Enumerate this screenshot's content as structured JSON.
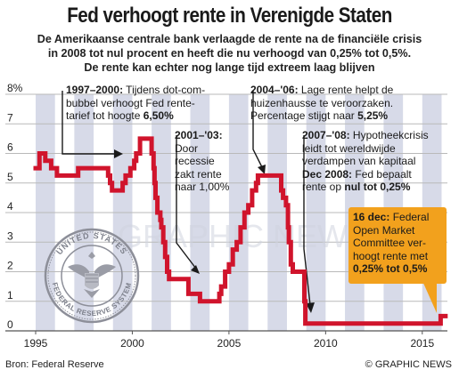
{
  "title": "Fed verhoogt rente in Verenigde Staten",
  "subtitle_lines": [
    "De Amerikaanse centrale bank verlaagde de rente na de financiële crisis",
    "in 2008 tot nul procent en heeft die nu verhoogd van 0,25% tot 0,5%.",
    "De rente kan echter nog lange tijd extreem laag blijven"
  ],
  "annotations": {
    "a1997": {
      "period": "1997–2000:",
      "text1": " Tijdens dot-com-",
      "line2": "bubbel verhoogt Fed rente-",
      "line3a": "tarief tot hoogte ",
      "line3b": "6,50%"
    },
    "a2001": {
      "period": "2001–'03:",
      "line2": "Door",
      "line3": "recessie",
      "line4": "zakt rente",
      "line5": "naar 1,00%"
    },
    "a2004": {
      "period": "2004–'06:",
      "text1": " Lage rente helpt de",
      "line2": "huizenhausse te veroorzaken.",
      "line3a": "Percentage stijgt naar ",
      "line3b": "5,25%"
    },
    "a2007": {
      "period": "2007–'08:",
      "text1": " Hypotheekcrisis",
      "line2": "leidt tot wereldwijde",
      "line3": "verdampen van kapitaal",
      "line4a": "Dec 2008:",
      "line4b": " Fed bepaalt",
      "line5a": "rente op ",
      "line5b": "nul tot 0,25%"
    },
    "a2015": {
      "date": "16 dec:",
      "text1": " Federal",
      "line2": "Open Market",
      "line3": "Committee ver-",
      "line4": "hoogt rente met",
      "line5": "0,25% tot 0,5%"
    }
  },
  "seal": {
    "top_text": "UNITED STATES",
    "bottom_text": "FEDERAL RESERVE SYSTEM"
  },
  "watermark": "GRAPHIC NEWS",
  "source": "Bron: Federal Reserve",
  "credit": "© GRAPHIC NEWS",
  "colors": {
    "line": "#d0142c",
    "band": "#c9cde0",
    "grid": "#b9b9b9",
    "callout": "#f2a11d"
  },
  "chart_data": {
    "type": "line",
    "title": "Fed verhoogt rente in Verenigde Staten",
    "xlabel": "",
    "ylabel": "",
    "xlim": [
      1995,
      2016.3
    ],
    "ylim": [
      0,
      8
    ],
    "x_ticks": [
      "1995",
      "2000",
      "2005",
      "2010",
      "2015"
    ],
    "y_ticks": [
      "0",
      "1",
      "2",
      "3",
      "4",
      "5",
      "6",
      "7",
      "8%"
    ],
    "grid": true,
    "series": [
      {
        "x": [
          1995.0,
          1995.2,
          1995.5,
          1995.8,
          1996.0,
          1996.1,
          1996.5,
          1997.0,
          1997.2,
          1997.5,
          1998.0,
          1998.5,
          1998.75,
          1998.85,
          1998.95,
          1999.0,
          1999.4,
          1999.5,
          1999.65,
          1999.9,
          2000.1,
          2000.2,
          2000.4,
          2000.5,
          2000.95,
          2001.0,
          2001.1,
          2001.15,
          2001.2,
          2001.3,
          2001.45,
          2001.5,
          2001.6,
          2001.7,
          2001.8,
          2001.9,
          2002.0,
          2002.8,
          2002.9,
          2003.4,
          2003.5,
          2004.0,
          2004.5,
          2004.6,
          2004.8,
          2005.0,
          2005.2,
          2005.4,
          2005.6,
          2005.8,
          2006.0,
          2006.2,
          2006.4,
          2006.5,
          2007.6,
          2007.7,
          2007.8,
          2007.95,
          2008.05,
          2008.1,
          2008.2,
          2008.3,
          2008.8,
          2008.9,
          2008.95,
          2015.9,
          2015.95,
          2016.2
        ],
        "y": [
          5.5,
          6.0,
          5.75,
          5.5,
          5.5,
          5.25,
          5.25,
          5.25,
          5.5,
          5.5,
          5.5,
          5.5,
          5.25,
          5.0,
          4.75,
          4.75,
          4.75,
          5.0,
          5.25,
          5.5,
          5.75,
          6.0,
          6.5,
          6.5,
          6.5,
          6.0,
          5.5,
          5.0,
          4.5,
          4.0,
          3.75,
          3.5,
          3.0,
          2.5,
          2.0,
          1.75,
          1.75,
          1.75,
          1.25,
          1.25,
          1.0,
          1.0,
          1.25,
          1.5,
          2.0,
          2.25,
          2.75,
          3.0,
          3.5,
          4.0,
          4.25,
          4.75,
          5.0,
          5.25,
          5.25,
          4.75,
          4.5,
          4.25,
          3.5,
          3.0,
          2.25,
          2.0,
          2.0,
          1.0,
          0.25,
          0.25,
          0.5,
          0.5
        ]
      }
    ]
  }
}
